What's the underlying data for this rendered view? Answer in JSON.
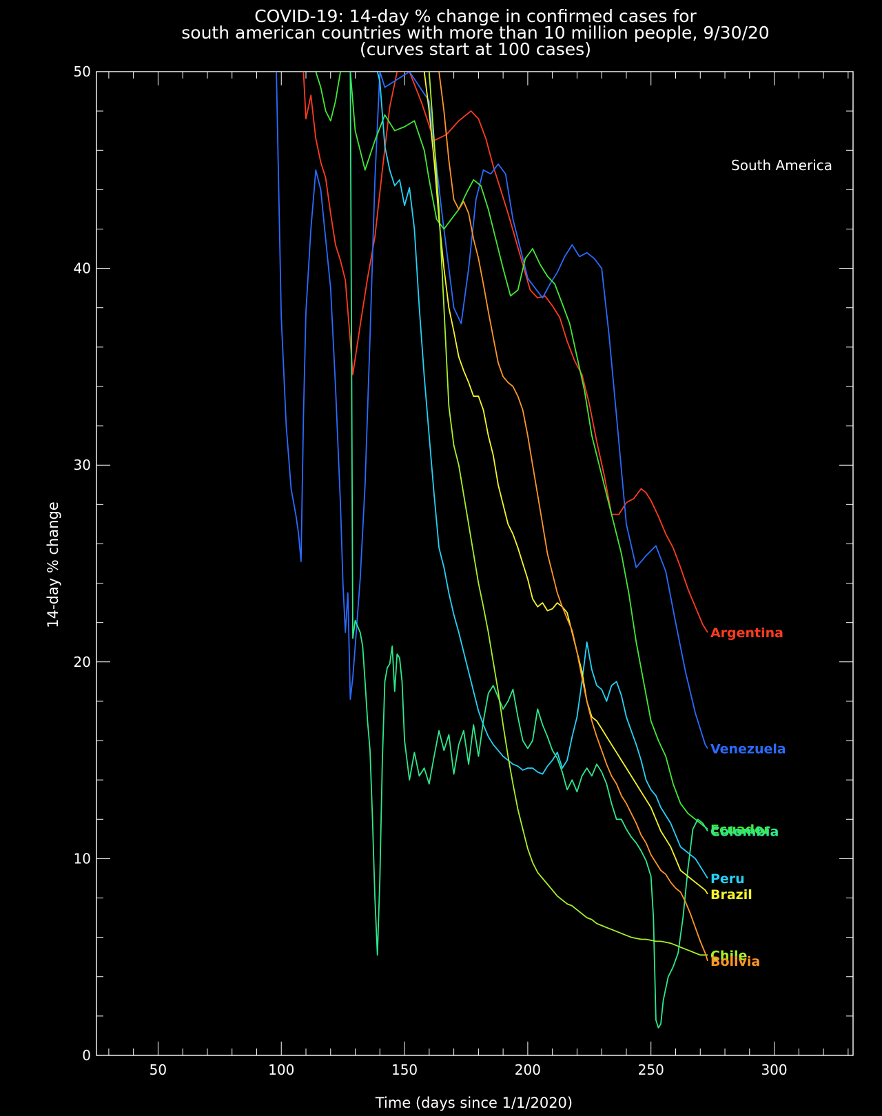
{
  "chart_data": {
    "type": "line",
    "title": [
      "COVID-19: 14-day % change in confirmed cases for",
      "south american countries with more than 10 million people, 9/30/20",
      "(curves start at 100 cases)"
    ],
    "xlabel": "Time (days since 1/1/2020)",
    "ylabel": "14-day % change",
    "annotation": "South America",
    "xlim": [
      25,
      332
    ],
    "ylim": [
      0,
      50
    ],
    "xticks": [
      50,
      100,
      150,
      200,
      250,
      300
    ],
    "yticks": [
      0,
      10,
      20,
      30,
      40,
      50
    ],
    "grid": false,
    "series": [
      {
        "name": "Argentina",
        "color": "#ff3b1f",
        "x": [
          109,
          110,
          112,
          114,
          116,
          118,
          120,
          122,
          124,
          126,
          128,
          129,
          132,
          135,
          138,
          141,
          144,
          147,
          152,
          157,
          162,
          167,
          172,
          177,
          180,
          183,
          186,
          189,
          192,
          195,
          198,
          201,
          204,
          207,
          210,
          213,
          216,
          219,
          222,
          225,
          228,
          231,
          234,
          237,
          240,
          243,
          246,
          248,
          250,
          253,
          256,
          259,
          262,
          265,
          268,
          271,
          273
        ],
        "y": [
          50,
          47.6,
          48.8,
          46.6,
          45.4,
          44.6,
          42.8,
          41.2,
          40.4,
          39.4,
          36.3,
          34.6,
          37.1,
          39.5,
          41.6,
          45.0,
          48.2,
          50,
          50,
          48.4,
          46.5,
          46.8,
          47.5,
          48.0,
          47.6,
          46.6,
          45.2,
          44.0,
          42.8,
          41.5,
          40.2,
          38.9,
          38.5,
          38.6,
          38.1,
          37.5,
          36.3,
          35.3,
          34.6,
          33.1,
          31.2,
          29.5,
          27.5,
          27.5,
          28.1,
          28.3,
          28.8,
          28.6,
          28.2,
          27.4,
          26.5,
          25.8,
          24.8,
          23.7,
          22.8,
          21.9,
          21.5
        ]
      },
      {
        "name": "Venezuela",
        "color": "#2a6bff",
        "x": [
          98,
          100,
          102,
          104,
          106,
          107,
          108,
          109,
          110,
          112,
          114,
          116,
          118,
          120,
          122,
          124,
          125,
          126,
          127,
          128,
          129,
          130,
          132,
          134,
          136,
          138,
          140,
          142,
          152,
          160,
          165,
          168,
          170,
          173,
          176,
          179,
          182,
          185,
          188,
          191,
          194,
          197,
          200,
          203,
          206,
          209,
          212,
          215,
          218,
          221,
          224,
          227,
          230,
          233,
          236,
          240,
          244,
          248,
          252,
          256,
          260,
          264,
          268,
          272,
          273
        ],
        "y": [
          50,
          37.5,
          32.0,
          28.8,
          27.4,
          26.5,
          25.1,
          32.5,
          37.8,
          42.0,
          45.0,
          44.0,
          41.5,
          39.0,
          34.0,
          28.0,
          24.0,
          21.5,
          23.5,
          18.1,
          19.2,
          20.8,
          24.2,
          29.0,
          36.5,
          44.5,
          50,
          49.2,
          50,
          48.5,
          43.0,
          40.0,
          38.0,
          37.2,
          40.0,
          43.5,
          45.0,
          44.8,
          45.3,
          44.8,
          42.5,
          41.0,
          39.5,
          39.0,
          38.5,
          39.2,
          39.8,
          40.6,
          41.2,
          40.6,
          40.8,
          40.5,
          40.0,
          36.6,
          32.5,
          27.0,
          24.8,
          25.4,
          25.9,
          24.6,
          22.0,
          19.5,
          17.4,
          15.8,
          15.6
        ]
      },
      {
        "name": "Ecuador",
        "color": "#42e836",
        "x": [
          114,
          116,
          118,
          120,
          122,
          124,
          128,
          130,
          134,
          138,
          142,
          146,
          150,
          154,
          158,
          160,
          163,
          166,
          169,
          172,
          175,
          178,
          181,
          184,
          187,
          190,
          193,
          196,
          199,
          202,
          205,
          208,
          211,
          214,
          217,
          220,
          223,
          226,
          229,
          232,
          235,
          238,
          241,
          244,
          247,
          250,
          253,
          256,
          259,
          262,
          265,
          268,
          271,
          273
        ],
        "y": [
          50,
          49.2,
          48.0,
          47.5,
          48.5,
          50,
          50,
          47.0,
          45.0,
          46.5,
          47.8,
          47.0,
          47.2,
          47.5,
          46.0,
          44.5,
          42.5,
          42.0,
          42.5,
          43.0,
          43.8,
          44.5,
          44.2,
          43.0,
          41.5,
          40.0,
          38.6,
          38.9,
          40.5,
          41.0,
          40.2,
          39.6,
          39.2,
          38.2,
          37.2,
          35.5,
          33.8,
          31.5,
          30.0,
          28.5,
          27.0,
          25.5,
          23.5,
          21.0,
          19.0,
          17.0,
          16.0,
          15.2,
          13.8,
          12.8,
          12.3,
          12.0,
          11.7,
          11.5
        ]
      },
      {
        "name": "Colombia",
        "color": "#2ee88a",
        "x": [
          128,
          129,
          130,
          132,
          133,
          134,
          135,
          136,
          137,
          138,
          139,
          140,
          141,
          142,
          143,
          144,
          145,
          146,
          147,
          148,
          149,
          150,
          152,
          154,
          156,
          158,
          160,
          162,
          164,
          166,
          168,
          170,
          172,
          174,
          176,
          178,
          180,
          182,
          184,
          186,
          188,
          190,
          192,
          194,
          196,
          198,
          200,
          202,
          204,
          206,
          208,
          210,
          212,
          214,
          216,
          218,
          220,
          222,
          224,
          226,
          228,
          230,
          232,
          234,
          236,
          238,
          240,
          242,
          244,
          246,
          248,
          250,
          251,
          252,
          253,
          254,
          255,
          257,
          259,
          261,
          263,
          265,
          267,
          269,
          271,
          273
        ],
        "y": [
          50,
          21.2,
          22.1,
          21.5,
          20.8,
          19.0,
          17.0,
          15.5,
          12.0,
          8.0,
          5.1,
          9.0,
          15.0,
          19.0,
          19.7,
          19.9,
          20.8,
          18.5,
          20.4,
          20.2,
          19.0,
          16.0,
          14.0,
          15.4,
          14.2,
          14.6,
          13.8,
          15.2,
          16.5,
          15.5,
          16.3,
          14.3,
          15.8,
          16.5,
          14.8,
          16.8,
          15.2,
          17.0,
          18.4,
          18.8,
          18.2,
          17.6,
          18.0,
          18.6,
          17.2,
          16.0,
          15.6,
          16.0,
          17.6,
          16.8,
          16.2,
          15.5,
          15.1,
          14.4,
          13.5,
          14.0,
          13.4,
          14.2,
          14.6,
          14.2,
          14.8,
          14.4,
          13.8,
          12.8,
          12.0,
          12.0,
          11.5,
          11.1,
          10.8,
          10.4,
          9.9,
          9.1,
          7.0,
          1.8,
          1.4,
          1.6,
          2.8,
          4.0,
          4.5,
          5.2,
          7.0,
          9.5,
          11.5,
          12.0,
          11.8,
          11.4
        ]
      },
      {
        "name": "Peru",
        "color": "#25d2f5",
        "x": [
          139,
          140,
          142,
          144,
          146,
          148,
          150,
          152,
          154,
          156,
          158,
          160,
          162,
          164,
          166,
          168,
          170,
          172,
          174,
          176,
          178,
          180,
          182,
          184,
          186,
          188,
          190,
          192,
          194,
          196,
          198,
          200,
          202,
          204,
          206,
          208,
          210,
          212,
          214,
          216,
          218,
          220,
          222,
          224,
          226,
          228,
          230,
          232,
          234,
          236,
          238,
          240,
          242,
          244,
          246,
          248,
          250,
          252,
          254,
          256,
          258,
          260,
          262,
          264,
          266,
          268,
          270,
          272,
          273
        ],
        "y": [
          50,
          49.5,
          46.2,
          45.0,
          44.2,
          44.5,
          43.2,
          44.1,
          42.0,
          38.0,
          34.5,
          31.5,
          28.5,
          25.8,
          24.8,
          23.5,
          22.4,
          21.5,
          20.5,
          19.5,
          18.5,
          17.5,
          16.8,
          16.2,
          15.8,
          15.5,
          15.2,
          15.0,
          14.8,
          14.7,
          14.5,
          14.6,
          14.6,
          14.4,
          14.3,
          14.7,
          15.0,
          15.4,
          14.6,
          15.0,
          16.2,
          17.2,
          19.0,
          21.0,
          19.6,
          18.8,
          18.6,
          18.0,
          18.8,
          19.0,
          18.3,
          17.2,
          16.5,
          15.8,
          15.0,
          14.0,
          13.5,
          13.2,
          12.6,
          12.2,
          11.8,
          11.2,
          10.6,
          10.4,
          10.2,
          10.0,
          9.6,
          9.2,
          9.0
        ]
      },
      {
        "name": "Brazil",
        "color": "#f5f52a",
        "x": [
          158,
          160,
          162,
          164,
          166,
          168,
          170,
          172,
          174,
          176,
          178,
          180,
          182,
          184,
          186,
          188,
          190,
          192,
          194,
          196,
          198,
          200,
          202,
          204,
          206,
          208,
          210,
          212,
          214,
          216,
          218,
          220,
          222,
          224,
          226,
          228,
          230,
          232,
          234,
          236,
          238,
          240,
          242,
          244,
          246,
          248,
          250,
          252,
          254,
          256,
          258,
          260,
          262,
          264,
          266,
          268,
          270,
          272,
          273
        ],
        "y": [
          50,
          48.0,
          45.5,
          42.5,
          40.0,
          38.0,
          36.8,
          35.5,
          34.8,
          34.2,
          33.5,
          33.5,
          32.8,
          31.5,
          30.5,
          29.0,
          28.0,
          27.0,
          26.5,
          25.8,
          25.0,
          24.2,
          23.2,
          22.8,
          23.0,
          22.6,
          22.7,
          23.0,
          22.8,
          22.5,
          21.5,
          20.5,
          19.5,
          18.0,
          17.2,
          17.0,
          16.6,
          16.2,
          15.8,
          15.4,
          15.0,
          14.6,
          14.2,
          13.8,
          13.4,
          13.0,
          12.6,
          12.0,
          11.4,
          11.0,
          10.6,
          10.0,
          9.4,
          9.2,
          9.0,
          8.8,
          8.6,
          8.4,
          8.2
        ]
      },
      {
        "name": "Chile",
        "color": "#a8f02a",
        "x": [
          160,
          162,
          164,
          166,
          168,
          170,
          172,
          174,
          176,
          178,
          180,
          182,
          184,
          186,
          188,
          190,
          192,
          194,
          196,
          198,
          200,
          202,
          204,
          206,
          208,
          210,
          212,
          214,
          216,
          218,
          220,
          222,
          224,
          226,
          228,
          230,
          232,
          234,
          236,
          238,
          240,
          242,
          244,
          246,
          248,
          250,
          252,
          254,
          256,
          258,
          260,
          262,
          264,
          266,
          268,
          270,
          272,
          273
        ],
        "y": [
          50,
          46.5,
          43.0,
          38.0,
          33.0,
          31.0,
          30.0,
          28.5,
          27.0,
          25.5,
          24.0,
          22.8,
          21.5,
          20.0,
          18.5,
          16.8,
          15.2,
          13.8,
          12.5,
          11.5,
          10.5,
          9.8,
          9.3,
          9.0,
          8.7,
          8.4,
          8.1,
          7.9,
          7.7,
          7.6,
          7.4,
          7.2,
          7.0,
          6.9,
          6.7,
          6.6,
          6.5,
          6.4,
          6.3,
          6.2,
          6.1,
          6.0,
          5.95,
          5.9,
          5.9,
          5.85,
          5.8,
          5.8,
          5.75,
          5.7,
          5.6,
          5.5,
          5.4,
          5.3,
          5.2,
          5.1,
          5.1,
          5.1
        ]
      },
      {
        "name": "Bolivia",
        "color": "#ff9626",
        "x": [
          164,
          166,
          168,
          170,
          172,
          174,
          176,
          178,
          180,
          182,
          184,
          186,
          188,
          190,
          192,
          194,
          196,
          198,
          200,
          202,
          204,
          206,
          208,
          210,
          212,
          214,
          216,
          218,
          220,
          222,
          224,
          226,
          228,
          230,
          232,
          234,
          236,
          238,
          240,
          242,
          244,
          246,
          248,
          250,
          252,
          254,
          256,
          258,
          260,
          262,
          264,
          266,
          268,
          270,
          272,
          273
        ],
        "y": [
          50,
          48.0,
          45.5,
          43.5,
          43.0,
          43.4,
          42.8,
          41.5,
          40.5,
          39.2,
          37.8,
          36.5,
          35.2,
          34.5,
          34.2,
          34.0,
          33.5,
          32.8,
          31.5,
          30.0,
          28.5,
          27.0,
          25.5,
          24.5,
          23.5,
          22.8,
          22.2,
          21.6,
          20.5,
          19.2,
          18.0,
          17.0,
          16.2,
          15.5,
          14.8,
          14.2,
          13.8,
          13.2,
          12.8,
          12.3,
          11.8,
          11.2,
          10.8,
          10.2,
          9.8,
          9.4,
          9.2,
          8.8,
          8.5,
          8.3,
          7.8,
          7.2,
          6.5,
          5.8,
          5.2,
          4.8
        ]
      }
    ]
  }
}
